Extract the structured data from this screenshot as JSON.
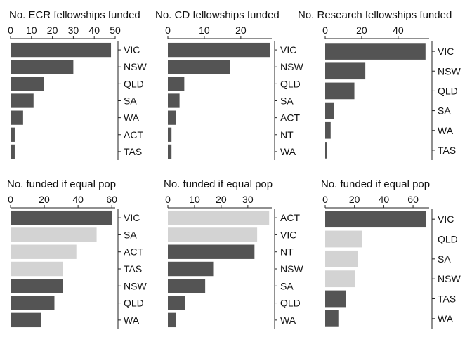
{
  "chart_data": [
    {
      "type": "bar",
      "orientation": "horizontal",
      "title": "No. ECR fellowships funded",
      "categories": [
        "VIC",
        "NSW",
        "QLD",
        "SA",
        "WA",
        "ACT",
        "TAS"
      ],
      "values": [
        48,
        30,
        16,
        11,
        6,
        2,
        2
      ],
      "highlight": [
        false,
        false,
        false,
        false,
        false,
        false,
        false
      ],
      "xlim": [
        0,
        50
      ],
      "xticks": [
        0,
        10,
        20,
        30,
        40,
        50
      ]
    },
    {
      "type": "bar",
      "orientation": "horizontal",
      "title": "No. CD fellowships funded",
      "categories": [
        "VIC",
        "NSW",
        "QLD",
        "SA",
        "ACT",
        "NT",
        "WA"
      ],
      "values": [
        28,
        17,
        4.5,
        3.2,
        2.2,
        1,
        1
      ],
      "highlight": [
        false,
        false,
        false,
        false,
        false,
        false,
        false
      ],
      "xlim": [
        0,
        28.5
      ],
      "xticks": [
        0,
        10,
        20
      ]
    },
    {
      "type": "bar",
      "orientation": "horizontal",
      "title": "No. Research fellowships funded",
      "categories": [
        "VIC",
        "NSW",
        "QLD",
        "SA",
        "WA",
        "TAS"
      ],
      "values": [
        55,
        22,
        16,
        5,
        3,
        1
      ],
      "highlight": [
        false,
        false,
        false,
        false,
        false,
        false
      ],
      "xlim": [
        0,
        57
      ],
      "xticks": [
        0,
        20,
        40
      ]
    },
    {
      "type": "bar",
      "orientation": "horizontal",
      "title": "No. funded if equal pop",
      "categories": [
        "VIC",
        "SA",
        "ACT",
        "TAS",
        "NSW",
        "QLD",
        "WA"
      ],
      "values": [
        60,
        51,
        39,
        31,
        31,
        26,
        18
      ],
      "highlight": [
        false,
        true,
        true,
        true,
        false,
        false,
        false
      ],
      "xlim": [
        0,
        62
      ],
      "xticks": [
        0,
        20,
        40,
        60
      ]
    },
    {
      "type": "bar",
      "orientation": "horizontal",
      "title": "No. funded if equal pop",
      "categories": [
        "ACT",
        "VIC",
        "NT",
        "NSW",
        "SA",
        "QLD",
        "WA"
      ],
      "values": [
        38,
        33.5,
        32.5,
        17,
        14,
        6.5,
        3
      ],
      "highlight": [
        true,
        true,
        false,
        false,
        false,
        false,
        false
      ],
      "xlim": [
        0,
        39
      ],
      "xticks": [
        0,
        10,
        20,
        30
      ]
    },
    {
      "type": "bar",
      "orientation": "horizontal",
      "title": "No. funded if equal pop",
      "categories": [
        "VIC",
        "QLD",
        "SA",
        "NSW",
        "TAS",
        "WA"
      ],
      "values": [
        69,
        25,
        22.5,
        20.5,
        14,
        9
      ],
      "highlight": [
        false,
        true,
        true,
        true,
        false,
        false
      ],
      "xlim": [
        0,
        71
      ],
      "xticks": [
        0,
        20,
        40,
        60
      ]
    }
  ],
  "colors": {
    "bar_dark": "#545454",
    "bar_light": "#d3d3d3",
    "axis": "#222222",
    "text": "#111111"
  }
}
